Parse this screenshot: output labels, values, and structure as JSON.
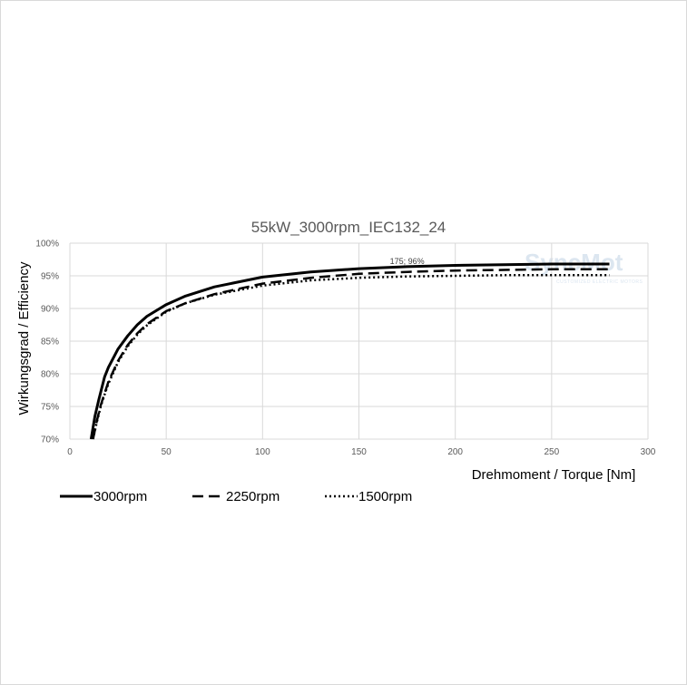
{
  "chart_data": {
    "type": "line",
    "title": "55kW_3000rpm_IEC132_24",
    "xlabel": "Drehmoment / Torque [Nm]",
    "ylabel": "Wirkungsgrad / Efficiency",
    "xlim": [
      0,
      300
    ],
    "ylim": [
      70,
      100
    ],
    "xticks": [
      "0",
      "50",
      "100",
      "150",
      "200",
      "250",
      "300"
    ],
    "yticks": [
      "70%",
      "75%",
      "80%",
      "85%",
      "90%",
      "95%",
      "100%"
    ],
    "grid": true,
    "legend_position": "bottom-left",
    "annotation": {
      "text": "175; 96%",
      "x": 175,
      "y": 96
    },
    "watermark": {
      "main_a": "Sync",
      "main_b": "Mot",
      "sub": "CUSTOMIZED ELECTRIC MOTORS"
    },
    "series": [
      {
        "name": "3000rpm",
        "style": "solid",
        "x": [
          11,
          13,
          15,
          18,
          20,
          25,
          30,
          35,
          40,
          50,
          60,
          75,
          100,
          125,
          150,
          175,
          200,
          225,
          250,
          280
        ],
        "y": [
          70,
          73.5,
          76,
          79.5,
          81,
          83.8,
          85.8,
          87.5,
          88.8,
          90.6,
          91.9,
          93.3,
          94.8,
          95.6,
          96.1,
          96.4,
          96.6,
          96.7,
          96.8,
          96.8
        ]
      },
      {
        "name": "2250rpm",
        "style": "dashed",
        "x": [
          12,
          14,
          16,
          18,
          20,
          25,
          30,
          35,
          40,
          50,
          60,
          75,
          100,
          125,
          150,
          175,
          200,
          225,
          250,
          280
        ],
        "y": [
          70,
          72.8,
          75.2,
          77,
          78.8,
          82,
          84.4,
          86.2,
          87.6,
          89.6,
          90.8,
          92.2,
          93.8,
          94.7,
          95.3,
          95.6,
          95.8,
          95.9,
          96,
          96
        ]
      },
      {
        "name": "1500rpm",
        "style": "dotted",
        "x": [
          12,
          14,
          16,
          18,
          20,
          25,
          30,
          35,
          40,
          50,
          60,
          75,
          100,
          125,
          150,
          175,
          200,
          225,
          250,
          280
        ],
        "y": [
          70,
          72.6,
          75,
          76.8,
          78.5,
          81.8,
          84.2,
          86,
          87.4,
          89.5,
          90.8,
          92.1,
          93.5,
          94.3,
          94.7,
          94.9,
          95,
          95.1,
          95.1,
          95.1
        ]
      }
    ]
  }
}
